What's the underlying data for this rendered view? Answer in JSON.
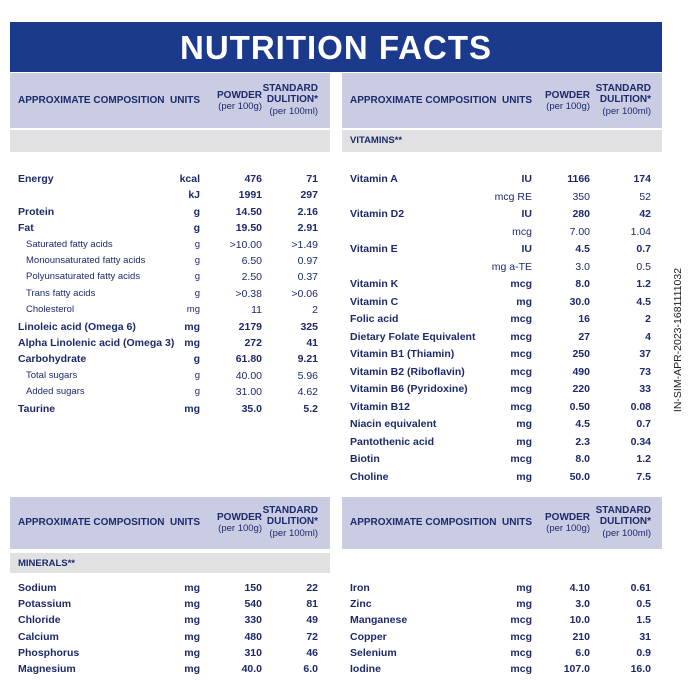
{
  "title": "NUTRITION FACTS",
  "columns": {
    "composition": "APPROXIMATE COMPOSITION",
    "units": "UNITS",
    "powder": "POWDER",
    "powder_note": "(per 100g)",
    "dilution": "STANDARD DULITION*",
    "dilution_note": "(per 100ml)"
  },
  "side_code": "IN-SIM-APR-2023-1681111032",
  "panels": [
    {
      "rows": [
        {
          "name": "Energy",
          "units": "kcal",
          "powder": "476",
          "dilution": "71"
        },
        {
          "name": null,
          "units": "kJ",
          "powder": "1991",
          "dilution": "297"
        },
        {
          "name": "Protein",
          "units": "g",
          "powder": "14.50",
          "dilution": "2.16"
        },
        {
          "name": "Fat",
          "units": "g",
          "powder": "19.50",
          "dilution": "2.91",
          "sub": [
            {
              "name": "Saturated fatty acids",
              "units": "g",
              "powder": ">10.00",
              "dilution": ">1.49"
            },
            {
              "name": "Monounsaturated fatty acids",
              "units": "g",
              "powder": "6.50",
              "dilution": "0.97"
            },
            {
              "name": "Polyunsaturated fatty acids",
              "units": "g",
              "powder": "2.50",
              "dilution": "0.37"
            },
            {
              "name": "Trans fatty acids",
              "units": "g",
              "powder": ">0.38",
              "dilution": ">0.06"
            },
            {
              "name": "Cholesterol",
              "units": "mg",
              "powder": "11",
              "dilution": "2"
            }
          ]
        },
        {
          "name": "Linoleic acid (Omega 6)",
          "units": "mg",
          "powder": "2179",
          "dilution": "325"
        },
        {
          "name": "Alpha Linolenic acid (Omega 3)",
          "units": "mg",
          "powder": "272",
          "dilution": "41"
        },
        {
          "name": "Carbohydrate",
          "units": "g",
          "powder": "61.80",
          "dilution": "9.21",
          "sub": [
            {
              "name": "Total sugars",
              "units": "g",
              "powder": "40.00",
              "dilution": "5.96"
            },
            {
              "name": "Added sugars",
              "units": "g",
              "powder": "31.00",
              "dilution": "4.62"
            }
          ]
        },
        {
          "name": "Taurine",
          "units": "mg",
          "powder": "35.0",
          "dilution": "5.2"
        }
      ]
    },
    {
      "section": "VITAMINS**",
      "rows": [
        {
          "name": "Vitamin A",
          "units": "IU",
          "powder": "1166",
          "dilution": "174",
          "alt": {
            "units": "mcg RE",
            "powder": "350",
            "dilution": "52"
          }
        },
        {
          "name": "Vitamin D2",
          "units": "IU",
          "powder": "280",
          "dilution": "42",
          "alt": {
            "units": "mcg",
            "powder": "7.00",
            "dilution": "1.04"
          }
        },
        {
          "name": "Vitamin E",
          "units": "IU",
          "powder": "4.5",
          "dilution": "0.7",
          "alt": {
            "units": "mg a-TE",
            "powder": "3.0",
            "dilution": "0.5"
          }
        },
        {
          "name": "Vitamin K",
          "units": "mcg",
          "powder": "8.0",
          "dilution": "1.2"
        },
        {
          "name": "Vitamin C",
          "units": "mg",
          "powder": "30.0",
          "dilution": "4.5"
        },
        {
          "name": "Folic acid",
          "units": "mcg",
          "powder": "16",
          "dilution": "2"
        },
        {
          "name": "Dietary Folate Equivalent",
          "units": "mcg",
          "powder": "27",
          "dilution": "4"
        },
        {
          "name": "Vitamin B1 (Thiamin)",
          "units": "mcg",
          "powder": "250",
          "dilution": "37"
        },
        {
          "name": "Vitamin B2 (Riboflavin)",
          "units": "mcg",
          "powder": "490",
          "dilution": "73"
        },
        {
          "name": "Vitamin B6 (Pyridoxine)",
          "units": "mcg",
          "powder": "220",
          "dilution": "33"
        },
        {
          "name": "Vitamin B12",
          "units": "mcg",
          "powder": "0.50",
          "dilution": "0.08"
        },
        {
          "name": "Niacin equivalent",
          "units": "mg",
          "powder": "4.5",
          "dilution": "0.7"
        },
        {
          "name": "Pantothenic acid",
          "units": "mg",
          "powder": "2.3",
          "dilution": "0.34"
        },
        {
          "name": "Biotin",
          "units": "mcg",
          "powder": "8.0",
          "dilution": "1.2"
        },
        {
          "name": "Choline",
          "units": "mg",
          "powder": "50.0",
          "dilution": "7.5"
        }
      ]
    },
    {
      "section": "MINERALS**",
      "rows": [
        {
          "name": "Sodium",
          "units": "mg",
          "powder": "150",
          "dilution": "22"
        },
        {
          "name": "Potassium",
          "units": "mg",
          "powder": "540",
          "dilution": "81"
        },
        {
          "name": "Chloride",
          "units": "mg",
          "powder": "330",
          "dilution": "49"
        },
        {
          "name": "Calcium",
          "units": "mg",
          "powder": "480",
          "dilution": "72"
        },
        {
          "name": "Phosphorus",
          "units": "mg",
          "powder": "310",
          "dilution": "46"
        },
        {
          "name": "Magnesium",
          "units": "mg",
          "powder": "40.0",
          "dilution": "6.0"
        }
      ]
    },
    {
      "rows": [
        {
          "name": "Iron",
          "units": "mg",
          "powder": "4.10",
          "dilution": "0.61"
        },
        {
          "name": "Zinc",
          "units": "mg",
          "powder": "3.0",
          "dilution": "0.5"
        },
        {
          "name": "Manganese",
          "units": "mcg",
          "powder": "10.0",
          "dilution": "1.5"
        },
        {
          "name": "Copper",
          "units": "mcg",
          "powder": "210",
          "dilution": "31"
        },
        {
          "name": "Selenium",
          "units": "mcg",
          "powder": "6.0",
          "dilution": "0.9"
        },
        {
          "name": "Iodine",
          "units": "mcg",
          "powder": "107.0",
          "dilution": "16.0"
        }
      ]
    }
  ]
}
